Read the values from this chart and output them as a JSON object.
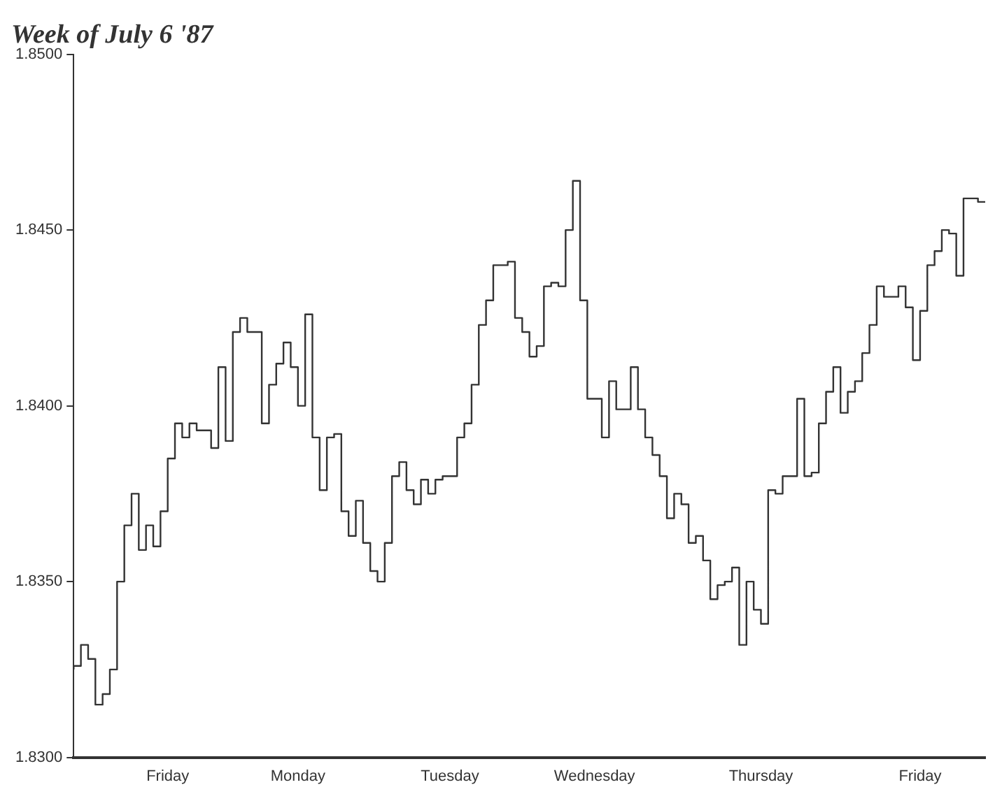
{
  "chart_data": {
    "type": "step",
    "title": "Week of July 6 '87",
    "categories": [
      null,
      null,
      null,
      null,
      null,
      null,
      null,
      null,
      null,
      null,
      null,
      null,
      null,
      "Friday",
      null,
      null,
      null,
      null,
      null,
      null,
      null,
      null,
      null,
      null,
      null,
      null,
      null,
      null,
      null,
      null,
      null,
      "Monday",
      null,
      null,
      null,
      null,
      null,
      null,
      null,
      null,
      null,
      null,
      null,
      null,
      null,
      null,
      null,
      null,
      null,
      null,
      null,
      null,
      "Tuesday",
      null,
      null,
      null,
      null,
      null,
      null,
      null,
      null,
      null,
      null,
      null,
      null,
      null,
      null,
      null,
      null,
      null,
      null,
      null,
      "Wednesday",
      null,
      null,
      null,
      null,
      null,
      null,
      null,
      null,
      null,
      null,
      null,
      null,
      null,
      null,
      null,
      null,
      null,
      null,
      null,
      null,
      null,
      null,
      "Thursday",
      null,
      null,
      null,
      null,
      null,
      null,
      null,
      null,
      null,
      null,
      null,
      null,
      null,
      null,
      null,
      null,
      null,
      null,
      null,
      null,
      null,
      "Friday",
      null,
      null,
      null,
      null,
      null,
      null,
      null,
      null,
      null
    ],
    "ylim": [
      1.83,
      1.85
    ],
    "yticks": [
      {
        "value": 1.83,
        "label": "1.8300"
      },
      {
        "value": 1.835,
        "label": "1.8350"
      },
      {
        "value": 1.84,
        "label": "1.8400"
      },
      {
        "value": 1.845,
        "label": "1.8450"
      },
      {
        "value": 1.85,
        "label": "1.8500"
      }
    ],
    "grid": false,
    "legend": false,
    "marker": "none",
    "line_style": "solid",
    "series": [
      {
        "color": "#333333",
        "values": [
          1.8325,
          1.8326,
          1.8332,
          1.8328,
          1.8315,
          1.8318,
          1.8325,
          1.835,
          1.8366,
          1.8375,
          1.8359,
          1.8366,
          1.836,
          1.837,
          1.8385,
          1.8395,
          1.8391,
          1.8395,
          1.8393,
          1.8393,
          1.8388,
          1.8411,
          1.839,
          1.8421,
          1.8425,
          1.8421,
          1.8421,
          1.8395,
          1.8406,
          1.8412,
          1.8418,
          1.8411,
          1.84,
          1.8426,
          1.8391,
          1.8376,
          1.8391,
          1.8392,
          1.837,
          1.8363,
          1.8373,
          1.8361,
          1.8353,
          1.835,
          1.8361,
          1.838,
          1.8384,
          1.8376,
          1.8372,
          1.8379,
          1.8375,
          1.8379,
          1.838,
          1.838,
          1.8391,
          1.8395,
          1.8406,
          1.8423,
          1.843,
          1.844,
          1.844,
          1.8441,
          1.8425,
          1.8421,
          1.8414,
          1.8417,
          1.8434,
          1.8435,
          1.8434,
          1.845,
          1.8464,
          1.843,
          1.8402,
          1.8402,
          1.8391,
          1.8407,
          1.8399,
          1.8399,
          1.8411,
          1.8399,
          1.8391,
          1.8386,
          1.838,
          1.8368,
          1.8375,
          1.8372,
          1.8361,
          1.8363,
          1.8356,
          1.8345,
          1.8349,
          1.835,
          1.8354,
          1.8332,
          1.835,
          1.8342,
          1.8338,
          1.8376,
          1.8375,
          1.838,
          1.838,
          1.8402,
          1.838,
          1.8381,
          1.8395,
          1.8404,
          1.8411,
          1.8398,
          1.8404,
          1.8407,
          1.8415,
          1.8423,
          1.8434,
          1.8431,
          1.8431,
          1.8434,
          1.8428,
          1.8413,
          1.8427,
          1.844,
          1.8444,
          1.845,
          1.8449,
          1.8437,
          1.8459,
          1.8459,
          1.8458
        ]
      }
    ]
  }
}
